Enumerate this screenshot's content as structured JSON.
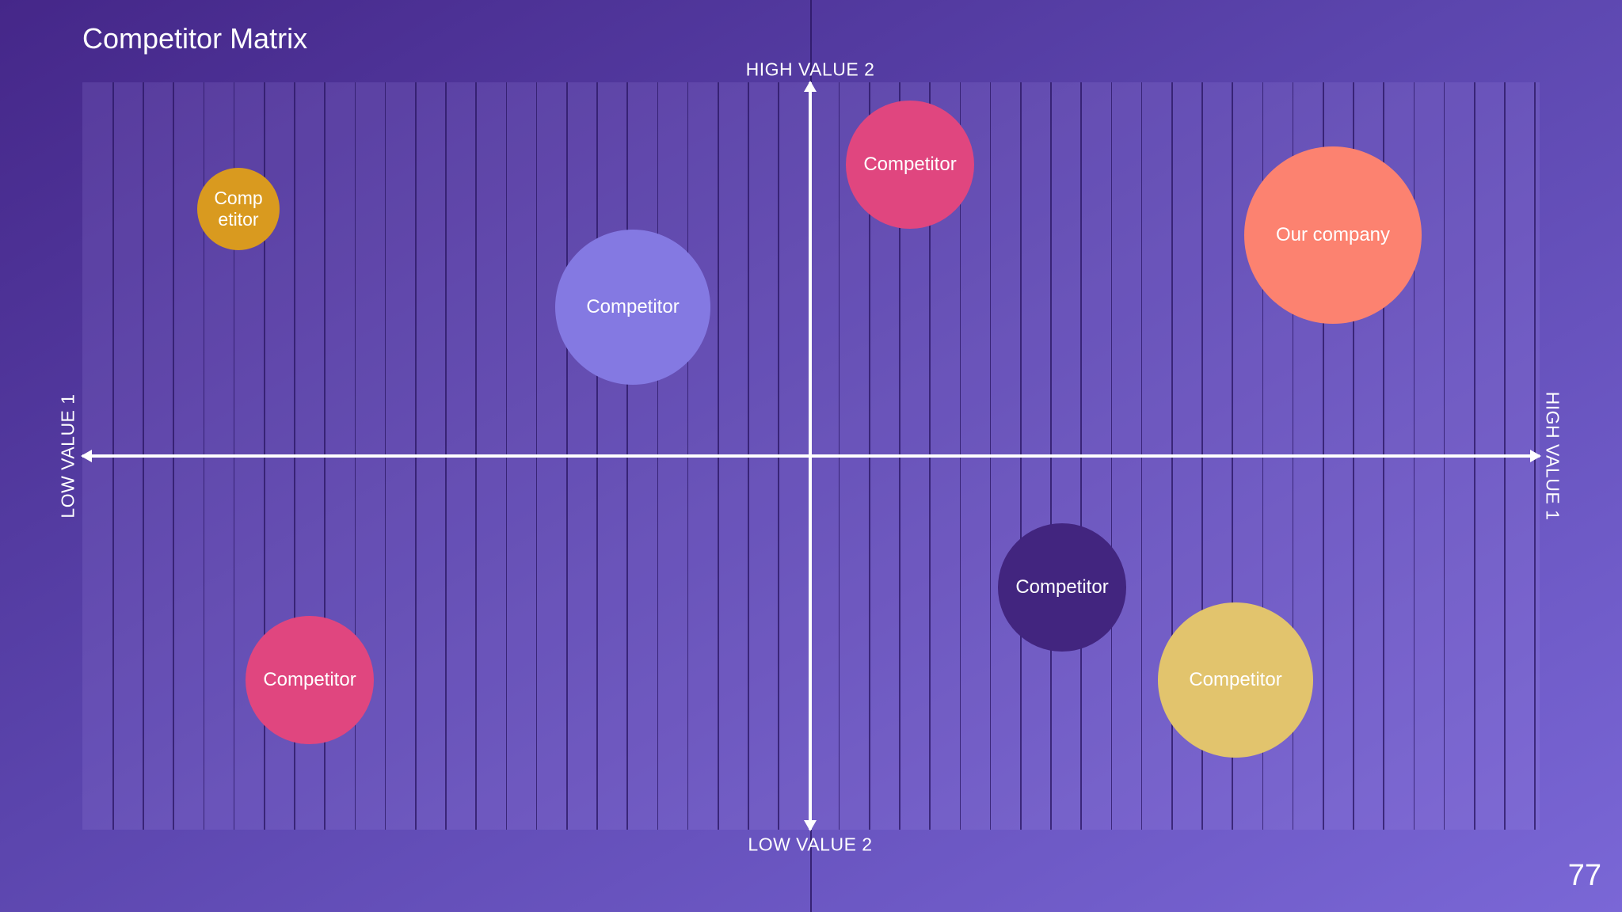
{
  "title": "Competitor Matrix",
  "page_number": "77",
  "axes": {
    "x_low": "LOW VALUE 1",
    "x_high": "HIGH VALUE 1",
    "y_high": "HIGH VALUE 2",
    "y_low": "LOW VALUE 2"
  },
  "bubbles": [
    {
      "label": "Competitor",
      "color": "#d99a1f"
    },
    {
      "label": "Competitor",
      "color": "#e0467f"
    },
    {
      "label": "Competitor",
      "color": "#8479e2"
    },
    {
      "label": "Our company",
      "color": "#fc8270"
    },
    {
      "label": "Competitor",
      "color": "#42257f"
    },
    {
      "label": "Competitor",
      "color": "#e0467f"
    },
    {
      "label": "Competitor",
      "color": "#e2c46d"
    }
  ]
}
